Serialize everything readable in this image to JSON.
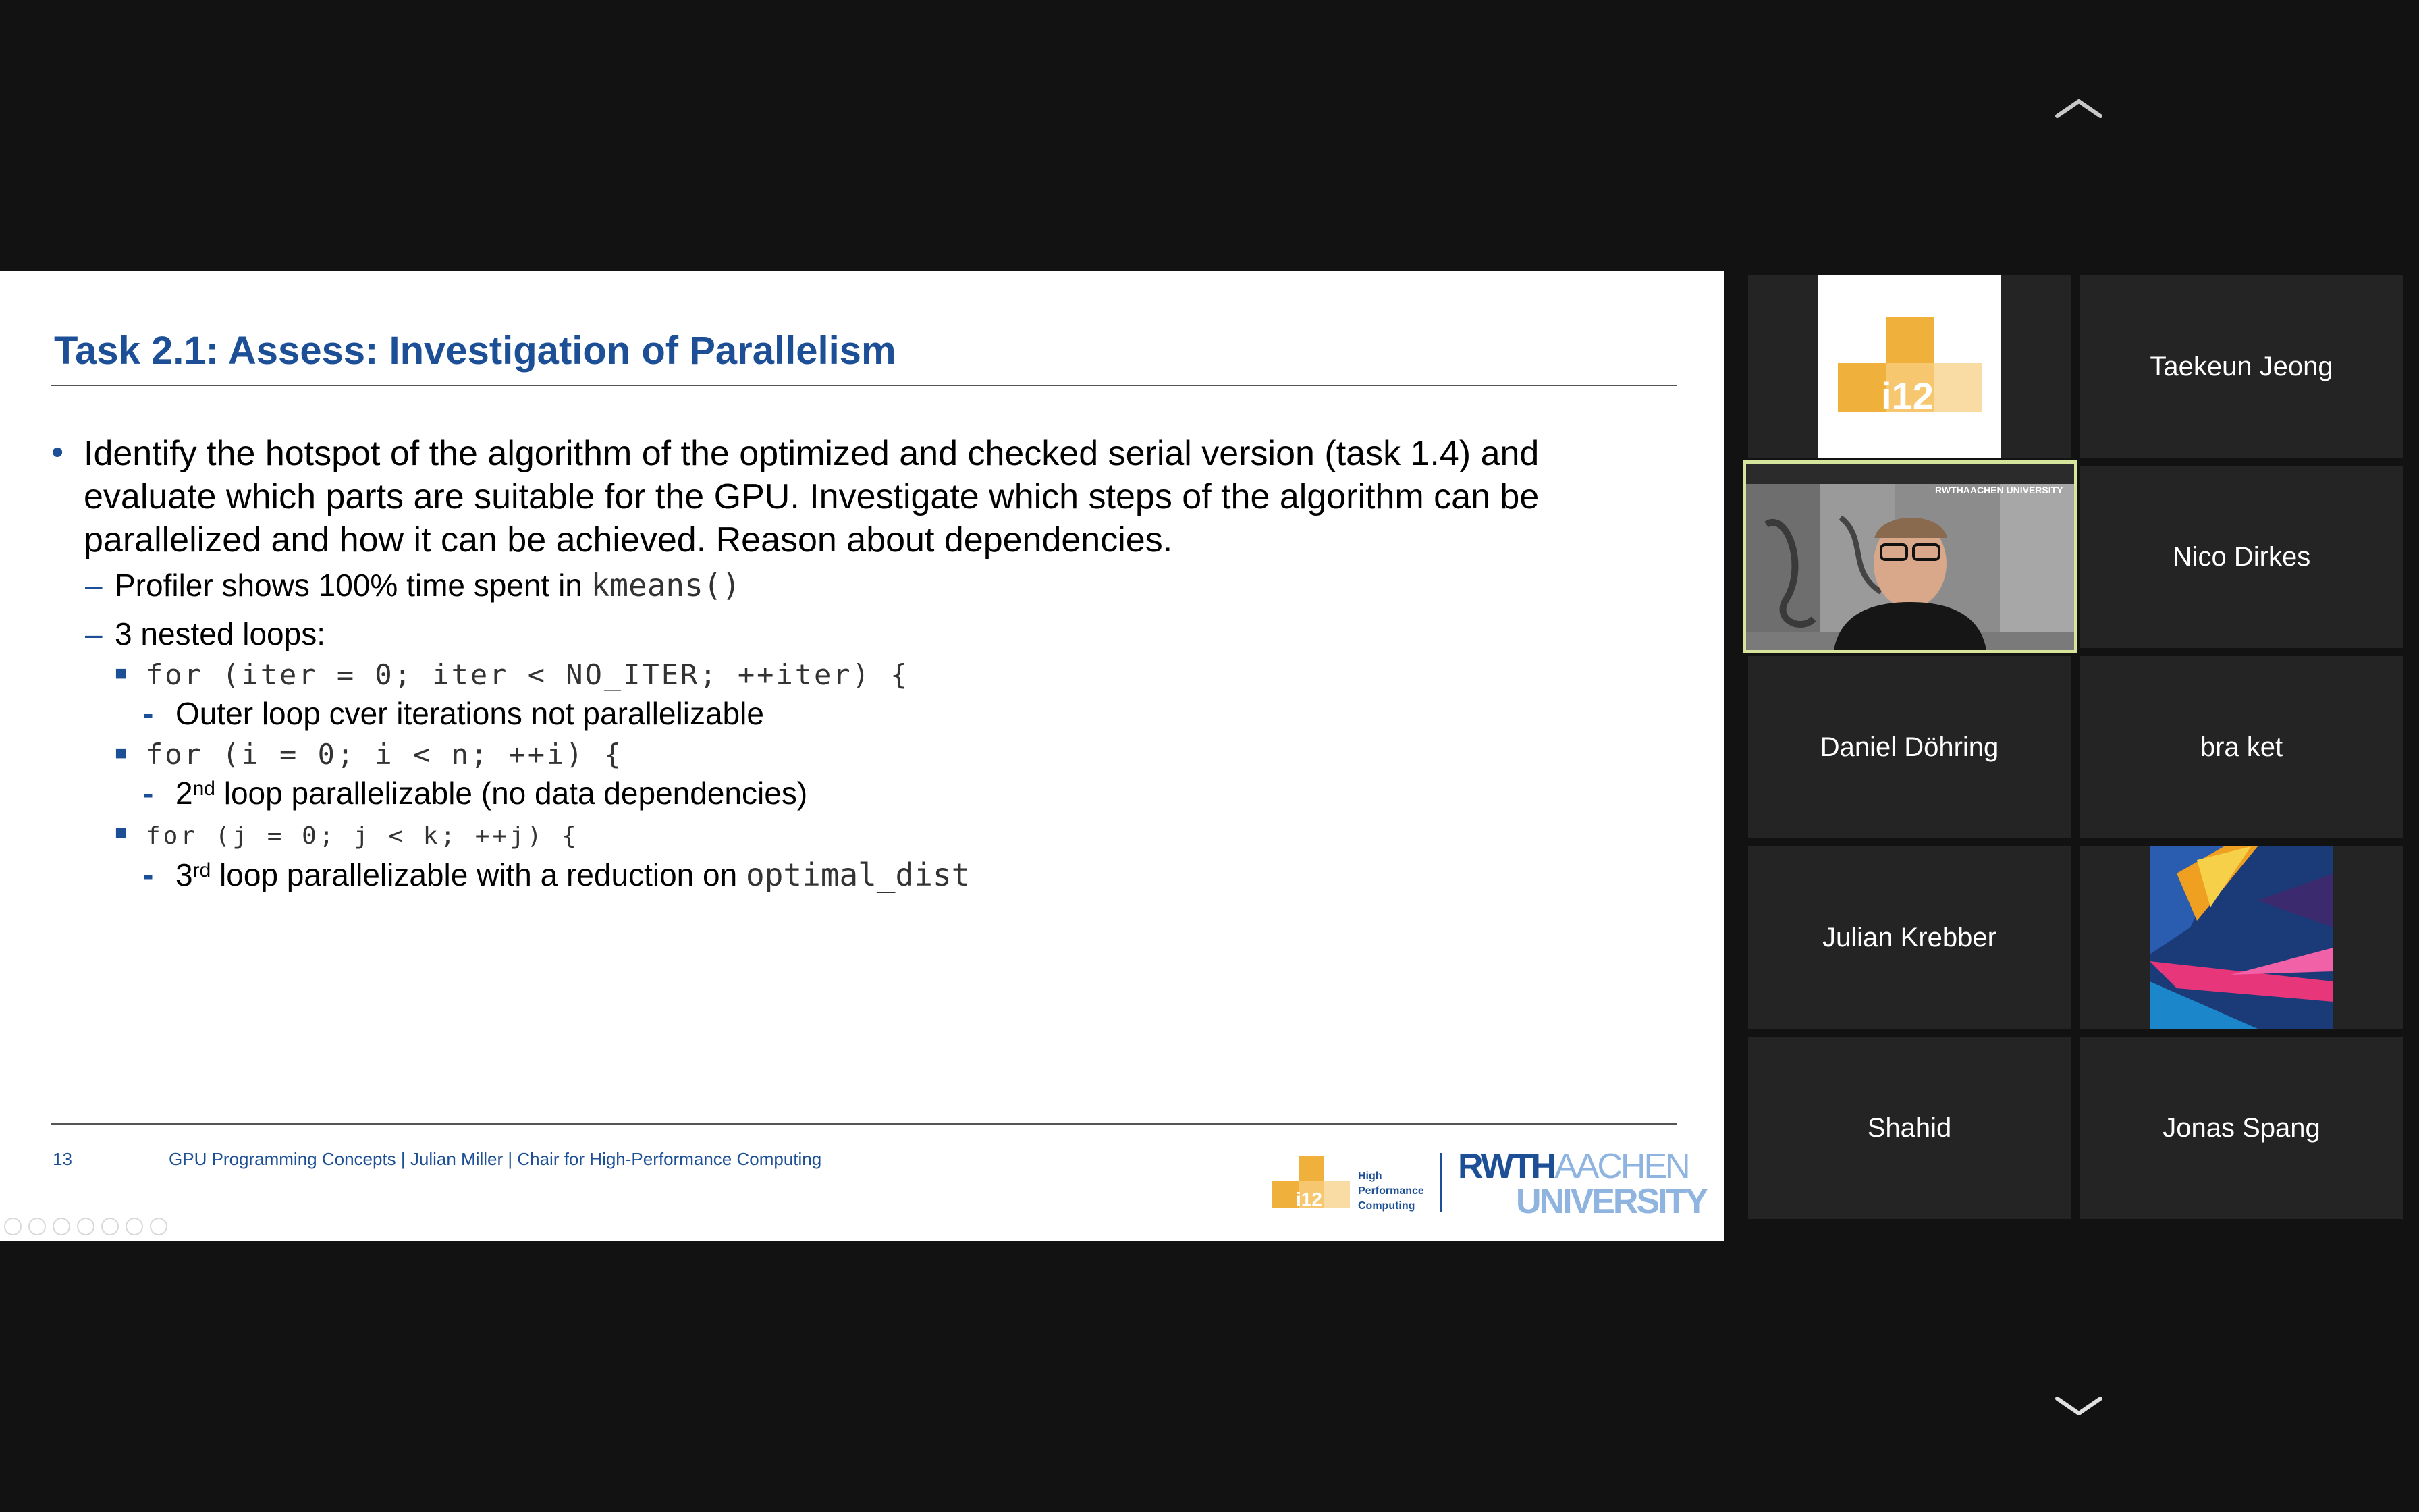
{
  "slide": {
    "title": "Task 2.1: Assess: Investigation of Parallelism",
    "bullet_main": "Identify the hotspot of the algorithm of the optimized and checked serial version (task 1.4) and evaluate which parts are suitable for the GPU. Investigate which steps of the algorithm can be parallelized and how it can be achieved. Reason about dependencies.",
    "profiler_text": "Profiler shows 100% time spent in ",
    "profiler_code": "kmeans()",
    "nested_loops": "3 nested loops:",
    "loop1_code": "for (iter = 0; iter < NO_ITER; ++iter) {",
    "loop1_note": "Outer loop cver iterations not parallelizable",
    "loop2_code": "for (i = 0; i < n; ++i) {",
    "loop2_num": "2",
    "loop2_sup": "nd",
    "loop2_note": " loop parallelizable (no data dependencies)",
    "loop3_code": "for (j = 0; j < k; ++j) {",
    "loop3_num": "3",
    "loop3_sup": "rd",
    "loop3_note": " loop parallelizable with a reduction on ",
    "loop3_code_inline": "optimal_dist",
    "footer": {
      "page_number": "13",
      "text": "GPU Programming Concepts |  Julian Miller |  Chair for High-Performance Computing"
    },
    "logo": {
      "hpc_line1": "High",
      "hpc_line2": "Performance",
      "hpc_line3": "Computing",
      "i12": "i12",
      "rwth": "RWTH",
      "aachen": "AACHEN",
      "university": "UNIVERSITY"
    }
  },
  "participants": {
    "tile_i12_logo_text": "i12",
    "names": {
      "taekeun": "Taekeun Jeong",
      "nico": "Nico Dirkes",
      "daniel": "Daniel Döhring",
      "braket": "bra ket",
      "julian": "Julian Krebber",
      "shahid": "Shahid",
      "jonas": "Jonas Spang"
    },
    "video_wall_text": "RWTHAACHEN UNIVERSITY"
  },
  "colors": {
    "background": "#121212",
    "tile": "#242424",
    "slide_blue": "#1c4f96",
    "active_speaker_border": "#d7e59c",
    "logo_orange": "#f0b03c"
  },
  "icons": {
    "scroll_up": "chevron-up-icon",
    "scroll_down": "chevron-down-icon"
  }
}
